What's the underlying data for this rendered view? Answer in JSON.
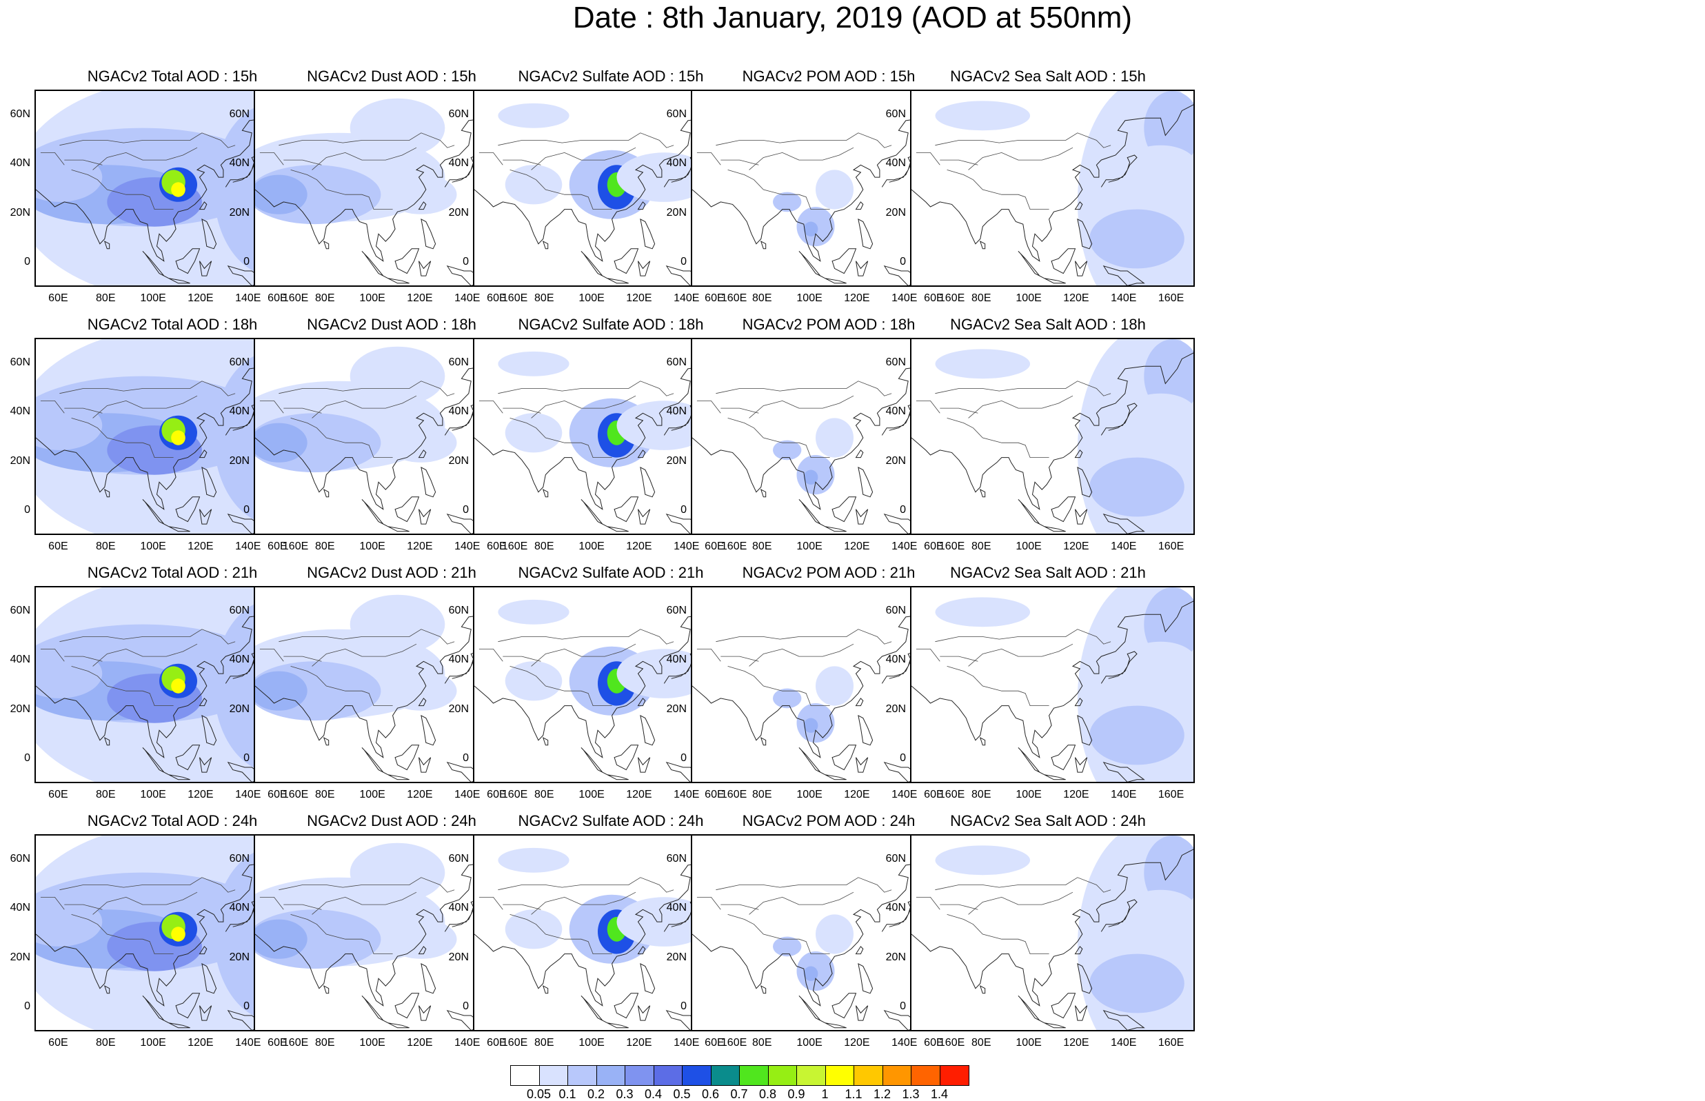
{
  "title": "Date : 8th January, 2019 (AOD at 550nm)",
  "panel_titles": [
    [
      "NGACv2 Total AOD : 15h",
      "NGACv2 Dust AOD : 15h",
      "NGACv2 Sulfate AOD : 15h",
      "NGACv2 POM AOD : 15h",
      "NGACv2 Sea Salt AOD : 15h"
    ],
    [
      "NGACv2 Total AOD : 18h",
      "NGACv2 Dust AOD : 18h",
      "NGACv2 Sulfate AOD : 18h",
      "NGACv2 POM AOD : 18h",
      "NGACv2 Sea Salt AOD : 18h"
    ],
    [
      "NGACv2 Total AOD : 21h",
      "NGACv2 Dust AOD : 21h",
      "NGACv2 Sulfate AOD : 21h",
      "NGACv2 POM AOD : 21h",
      "NGACv2 Sea Salt AOD : 21h"
    ],
    [
      "NGACv2 Total AOD : 24h",
      "NGACv2 Dust AOD : 24h",
      "NGACv2 Sulfate AOD : 24h",
      "NGACv2 POM AOD : 24h",
      "NGACv2 Sea Salt  AOD : 24h"
    ]
  ],
  "axes": {
    "lon_ticks": [
      "60E",
      "80E",
      "100E",
      "120E",
      "140E",
      "160E"
    ],
    "lon_values": [
      60,
      80,
      100,
      120,
      140,
      160
    ],
    "lon_range": [
      50,
      170
    ],
    "lat_ticks": [
      "60N",
      "40N",
      "20N",
      "0"
    ],
    "lat_values": [
      60,
      40,
      20,
      0
    ],
    "lat_range": [
      -10,
      70
    ]
  },
  "colorbar": {
    "labels": [
      "0.05",
      "0.1",
      "0.2",
      "0.3",
      "0.4",
      "0.5",
      "0.6",
      "0.7",
      "0.8",
      "0.9",
      "1",
      "1.1",
      "1.2",
      "1.3",
      "1.4"
    ],
    "colors": [
      "#ffffff",
      "#d9e2fe",
      "#b8c8fb",
      "#99b2f6",
      "#7f93f0",
      "#5c6de6",
      "#1e50e6",
      "#0a8c8c",
      "#50e61e",
      "#96ee14",
      "#c8f532",
      "#ffff00",
      "#ffc800",
      "#ff9600",
      "#ff6400",
      "#ff1e00"
    ]
  },
  "chart_data": {
    "type": "heatmap",
    "description_fields": [
      "Total",
      "Dust",
      "Sulfate",
      "POM",
      "Sea Salt"
    ],
    "times": [
      "15h",
      "18h",
      "21h",
      "24h"
    ],
    "hotspot_lon_lat": [
      110,
      32
    ],
    "total_peak_aod": 1.1,
    "sulfate_peak_aod": 0.9
  }
}
